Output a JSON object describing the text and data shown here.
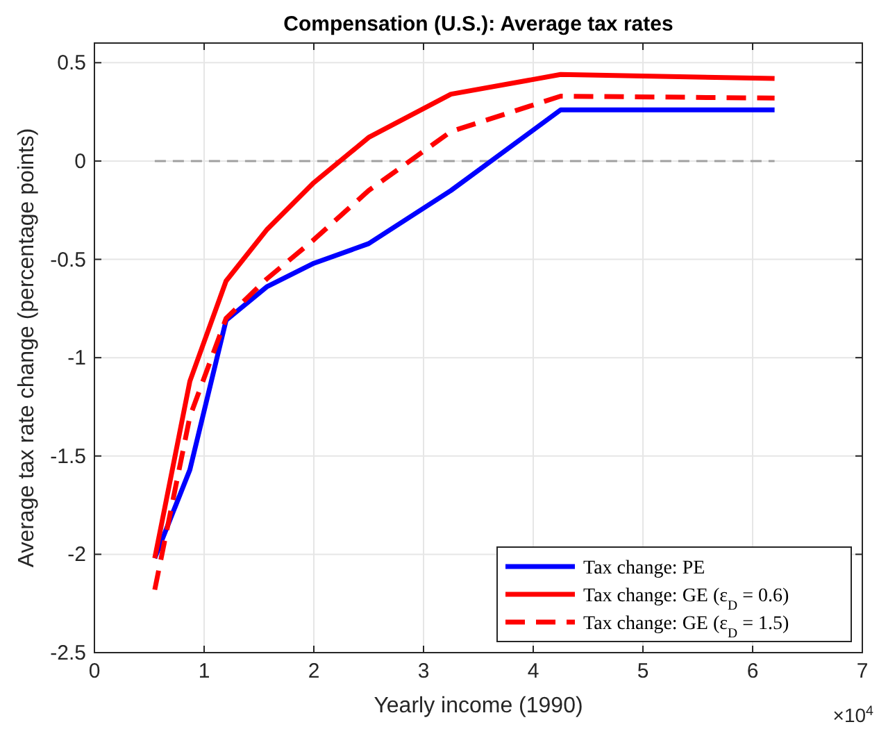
{
  "chart_data": {
    "type": "line",
    "title": "Compensation (U.S.): Average tax rates",
    "xlabel": "Yearly income (1990)",
    "ylabel": "Average tax rate change (percentage points)",
    "x": [
      0.55,
      0.87,
      1.2,
      1.57,
      2,
      2.5,
      3.25,
      4.25,
      6.2
    ],
    "series": [
      {
        "name": "Tax change: PE",
        "color": "#0000ff",
        "values": [
          -2.02,
          -1.57,
          -0.81,
          -0.64,
          -0.52,
          -0.42,
          -0.15,
          0.26,
          0.26
        ]
      },
      {
        "name": "Tax change: GE (ε$_{D}$ = 0.6)",
        "color": "#ff0000",
        "values": [
          -2.02,
          -1.12,
          -0.61,
          -0.35,
          -0.11,
          0.12,
          0.34,
          0.44,
          0.42
        ]
      },
      {
        "name": "Tax change: GE (ε$_{D}$ = 1.5)",
        "color": "#ff0000",
        "line_style": "dashed",
        "values": [
          -2.18,
          -1.3,
          -0.8,
          -0.6,
          -0.4,
          -0.15,
          0.15,
          0.33,
          0.32
        ]
      }
    ],
    "xlim": [
      0,
      7
    ],
    "xticks": [
      0,
      1,
      2,
      3,
      4,
      5,
      6,
      7
    ],
    "ylim": [
      -2.5,
      0.6
    ],
    "yticks": [
      -2.5,
      -2,
      -1.5,
      -1,
      -0.5,
      0,
      0.5
    ],
    "ref_lines": [
      {
        "axis": "y",
        "value": 0,
        "color": "#a0a0a0",
        "line_style": "dashed"
      }
    ],
    "annotations": [
      "×10$^{4}$"
    ],
    "grid": true,
    "legend": "bottom right",
    "line_style": "solid"
  }
}
